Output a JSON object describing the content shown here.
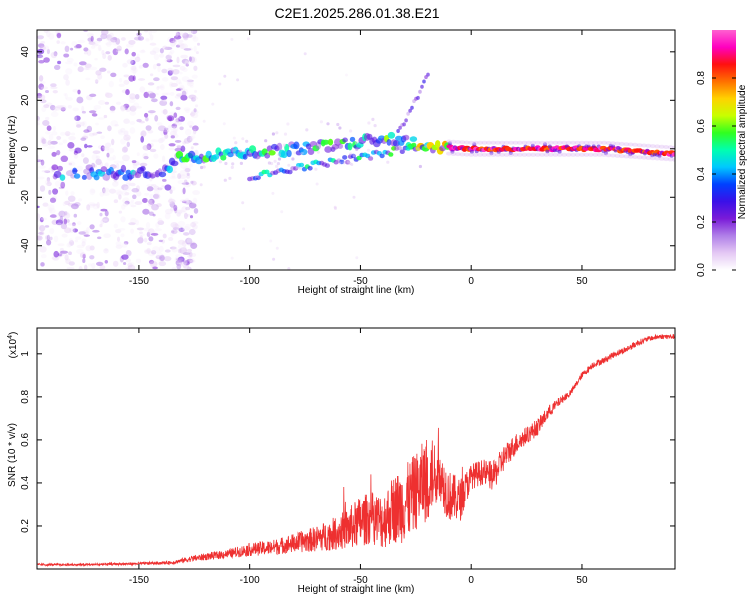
{
  "title": "C2E1.2025.286.01.38.E21",
  "chart_data": [
    {
      "type": "heatmap",
      "title": "C2E1.2025.286.01.38.E21",
      "xlabel": "Height of straight line (km)",
      "ylabel": "Frequency (Hz)",
      "xlim": [
        -196,
        92
      ],
      "ylim": [
        -50,
        49
      ],
      "xticks": [
        -150,
        -100,
        -50,
        0,
        50
      ],
      "yticks": [
        -40,
        -20,
        0,
        20,
        40
      ],
      "grid": false,
      "colorbar": {
        "label": "Normalized spectral amplitude",
        "range": [
          0,
          1
        ],
        "ticks": [
          0.0,
          0.2,
          0.4,
          0.6,
          0.8
        ],
        "colormap": [
          "#ffffff",
          "#e4c8f4",
          "#b07fe8",
          "#7a1bd8",
          "#3a10e8",
          "#0040ff",
          "#00c8ff",
          "#00ffb0",
          "#30ff20",
          "#c8ff00",
          "#ffd200",
          "#ff7000",
          "#ff1010",
          "#ff00c0",
          "#ff60d0"
        ]
      },
      "description_tracks": {
        "main_track_freq_hz": [
          [
            -175,
            -10
          ],
          [
            -140,
            -10
          ],
          [
            -132,
            -4
          ],
          [
            -100,
            -2
          ],
          [
            -60,
            2
          ],
          [
            -35,
            4
          ],
          [
            -20,
            1
          ],
          [
            0,
            0
          ],
          [
            30,
            0
          ],
          [
            60,
            0
          ],
          [
            92,
            -2
          ]
        ],
        "lower_branch_freq_hz": [
          [
            -100,
            -12
          ],
          [
            -80,
            -8
          ],
          [
            -60,
            -5
          ],
          [
            -40,
            -2
          ],
          [
            -25,
            1
          ]
        ],
        "upper_branch_freq_hz": [
          [
            -32,
            8
          ],
          [
            -28,
            15
          ],
          [
            -24,
            22
          ],
          [
            -20,
            30
          ]
        ]
      }
    },
    {
      "type": "line",
      "xlabel": "Height of straight line (km)",
      "ylabel": "SNR (10 * v/v)",
      "y_multiplier": "(x10^4)",
      "xlim": [
        -196,
        92
      ],
      "ylim": [
        0,
        1.12
      ],
      "xticks": [
        -150,
        -100,
        -50,
        0,
        50
      ],
      "yticks": [
        0.2,
        0.4,
        0.6,
        0.8,
        1.0
      ],
      "color": "#ee3030",
      "series": [
        {
          "name": "SNR",
          "x": [
            -196,
            -175,
            -150,
            -135,
            -125,
            -110,
            -100,
            -90,
            -80,
            -70,
            -60,
            -55,
            -50,
            -45,
            -40,
            -35,
            -30,
            -25,
            -20,
            -15,
            -10,
            -5,
            0,
            5,
            10,
            15,
            20,
            25,
            30,
            35,
            40,
            45,
            50,
            55,
            60,
            65,
            70,
            75,
            80,
            85,
            92
          ],
          "values": [
            0.02,
            0.02,
            0.025,
            0.03,
            0.05,
            0.07,
            0.09,
            0.1,
            0.12,
            0.14,
            0.17,
            0.19,
            0.22,
            0.24,
            0.22,
            0.28,
            0.3,
            0.36,
            0.42,
            0.45,
            0.34,
            0.32,
            0.43,
            0.45,
            0.43,
            0.52,
            0.58,
            0.62,
            0.66,
            0.73,
            0.78,
            0.82,
            0.9,
            0.95,
            0.97,
            1.0,
            1.02,
            1.05,
            1.07,
            1.08,
            1.08
          ],
          "noise_amplitude": [
            0.005,
            0.005,
            0.006,
            0.008,
            0.015,
            0.02,
            0.03,
            0.035,
            0.045,
            0.06,
            0.08,
            0.1,
            0.12,
            0.12,
            0.13,
            0.16,
            0.18,
            0.18,
            0.2,
            0.14,
            0.12,
            0.1,
            0.06,
            0.06,
            0.07,
            0.06,
            0.05,
            0.04,
            0.04,
            0.03,
            0.02,
            0.015,
            0.015,
            0.015,
            0.015,
            0.015,
            0.015,
            0.015,
            0.012,
            0.012,
            0.012
          ]
        }
      ]
    }
  ]
}
